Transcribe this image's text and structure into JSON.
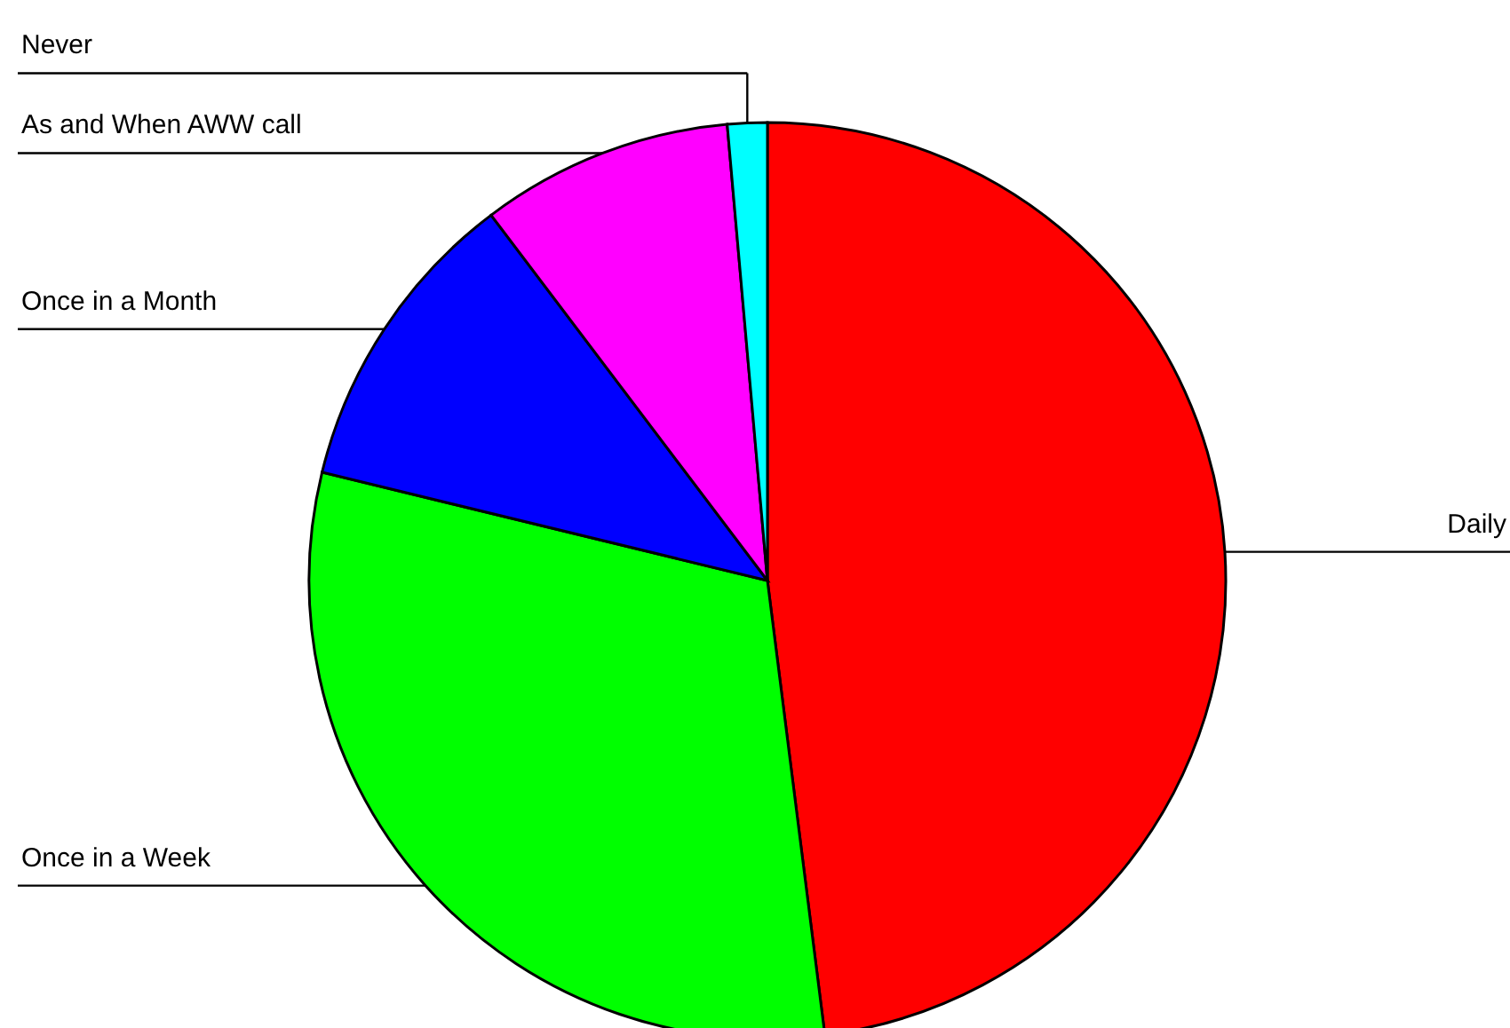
{
  "chart_data": {
    "type": "pie",
    "categories": [
      "Daily",
      "Once in a Week",
      "Once in a Month",
      "As and When AWW call",
      "Never"
    ],
    "values": [
      48,
      30.8,
      10.9,
      8.9,
      1.4
    ],
    "colors": [
      "#ff0000",
      "#00ff00",
      "#0000ff",
      "#ff00ff",
      "#00ffff"
    ]
  }
}
